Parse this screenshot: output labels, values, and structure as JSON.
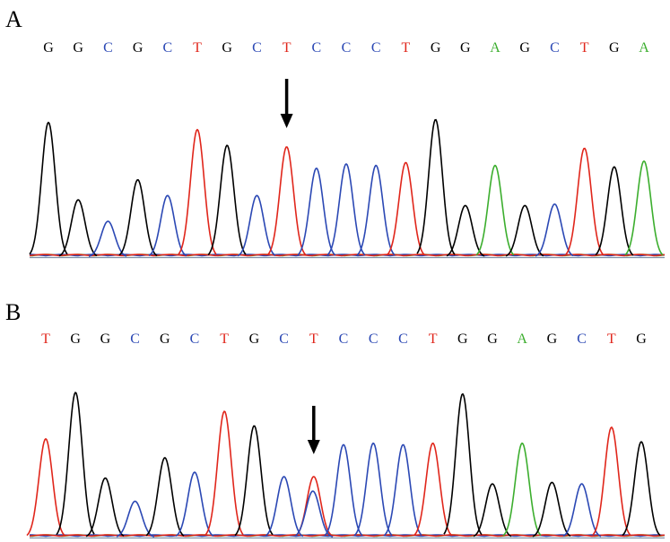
{
  "colors": {
    "A": "#3cae2e",
    "C": "#2b48b4",
    "G": "#000000",
    "T": "#e0261b",
    "arrow": "#000000"
  },
  "panels": [
    {
      "label": "A",
      "sequence": [
        "G",
        "G",
        "C",
        "G",
        "C",
        "T",
        "G",
        "C",
        "T",
        "C",
        "C",
        "C",
        "T",
        "G",
        "G",
        "A",
        "G",
        "C",
        "T",
        "G",
        "A"
      ],
      "peaks": [
        {
          "base": "G",
          "h": 0.94
        },
        {
          "base": "G",
          "h": 0.4
        },
        {
          "base": "C",
          "h": 0.25
        },
        {
          "base": "G",
          "h": 0.54
        },
        {
          "base": "C",
          "h": 0.43
        },
        {
          "base": "T",
          "h": 0.89
        },
        {
          "base": "G",
          "h": 0.78
        },
        {
          "base": "C",
          "h": 0.43
        },
        {
          "base": "T",
          "h": 0.77
        },
        {
          "base": "C",
          "h": 0.62
        },
        {
          "base": "C",
          "h": 0.65
        },
        {
          "base": "C",
          "h": 0.64
        },
        {
          "base": "T",
          "h": 0.66
        },
        {
          "base": "G",
          "h": 0.96
        },
        {
          "base": "G",
          "h": 0.36
        },
        {
          "base": "A",
          "h": 0.64
        },
        {
          "base": "G",
          "h": 0.36
        },
        {
          "base": "C",
          "h": 0.37
        },
        {
          "base": "T",
          "h": 0.76
        },
        {
          "base": "G",
          "h": 0.63
        },
        {
          "base": "A",
          "h": 0.67
        }
      ],
      "arrow_index": 8
    },
    {
      "label": "B",
      "sequence": [
        "T",
        "G",
        "G",
        "C",
        "G",
        "C",
        "T",
        "G",
        "C",
        "T",
        "C",
        "C",
        "C",
        "T",
        "G",
        "G",
        "A",
        "G",
        "C",
        "T",
        "G"
      ],
      "peaks": [
        {
          "base": "T",
          "h": 0.68
        },
        {
          "base": "G",
          "h": 1.0
        },
        {
          "base": "G",
          "h": 0.41
        },
        {
          "base": "C",
          "h": 0.25
        },
        {
          "base": "G",
          "h": 0.55
        },
        {
          "base": "C",
          "h": 0.45
        },
        {
          "base": "T",
          "h": 0.87
        },
        {
          "base": "G",
          "h": 0.77
        },
        {
          "base": "C",
          "h": 0.42
        },
        {
          "base": "T",
          "h": 0.42,
          "secondary": {
            "base": "C",
            "h": 0.32
          }
        },
        {
          "base": "C",
          "h": 0.64
        },
        {
          "base": "C",
          "h": 0.65
        },
        {
          "base": "C",
          "h": 0.64
        },
        {
          "base": "T",
          "h": 0.65
        },
        {
          "base": "G",
          "h": 0.99
        },
        {
          "base": "G",
          "h": 0.37
        },
        {
          "base": "A",
          "h": 0.65
        },
        {
          "base": "G",
          "h": 0.38
        },
        {
          "base": "C",
          "h": 0.37
        },
        {
          "base": "T",
          "h": 0.76
        },
        {
          "base": "G",
          "h": 0.66
        }
      ],
      "arrow_index": 9
    }
  ]
}
